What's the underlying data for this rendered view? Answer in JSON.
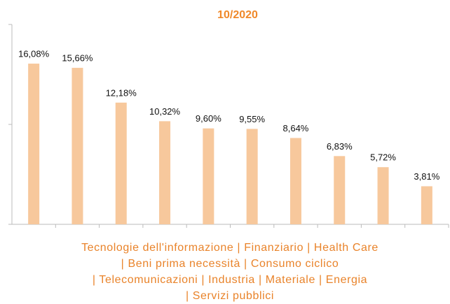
{
  "chart_data": {
    "type": "bar",
    "title": "10/2020",
    "values": [
      16.08,
      15.66,
      12.18,
      10.32,
      9.6,
      9.55,
      8.64,
      6.83,
      5.72,
      3.81
    ],
    "value_labels": [
      "16,08%",
      "15,66%",
      "12,18%",
      "10,32%",
      "9,60%",
      "9,55%",
      "8,64%",
      "6,83%",
      "5,72%",
      "3,81%"
    ],
    "x_label_lines": [
      "Tecnologie dell'informazione | Finanziario | Health Care",
      "| Beni prima necessità | Consumo ciclico",
      "| Telecomunicazioni | Industria | Materiale | Energia",
      "| Servizi pubblici"
    ],
    "color": "#f7c89c",
    "title_color": "#f0892a",
    "label_color": "#e9832a",
    "ylim": [
      0,
      20
    ],
    "yticks": [
      0,
      10,
      20
    ],
    "grid": false
  }
}
